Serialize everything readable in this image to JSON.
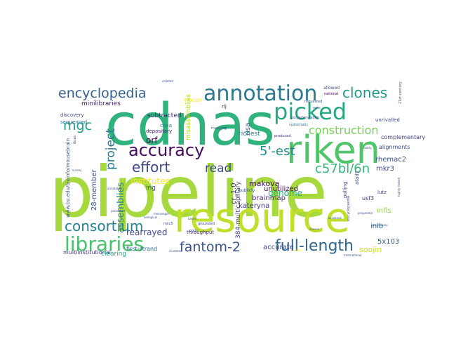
{
  "words": [
    {
      "text": "pipeline",
      "color": "#a5d93e"
    },
    {
      "text": "cdnas",
      "color": "#2fb27c"
    },
    {
      "text": "resource",
      "color": "#bfe02a"
    },
    {
      "text": "riken",
      "color": "#52c469"
    },
    {
      "text": "picked",
      "color": "#24aa83"
    },
    {
      "text": "annotation",
      "color": "#2b798e"
    },
    {
      "text": "accuracy",
      "color": "#450d5d"
    },
    {
      "text": "libraries",
      "color": "#48c16e"
    },
    {
      "text": "encyclopedia",
      "color": "#32628d"
    },
    {
      "text": "clones",
      "color": "#1f9a8a"
    },
    {
      "text": "full-length",
      "color": "#31678e"
    },
    {
      "text": "fantom-2",
      "color": "#3a528b"
    },
    {
      "text": "consortium",
      "color": "#26828e"
    },
    {
      "text": "construction",
      "color": "#75d054"
    },
    {
      "text": "effort",
      "color": "#3e4a89"
    },
    {
      "text": "c57bl/6n",
      "color": "#35b779"
    },
    {
      "text": "mgc",
      "color": "#1f9e89"
    },
    {
      "text": "project",
      "color": "#2a788e"
    },
    {
      "text": "5'-est",
      "color": "#20928c"
    },
    {
      "text": "read",
      "color": "#3b518b"
    },
    {
      "text": "genome",
      "color": "#25ac82"
    },
    {
      "text": "institutes",
      "color": "#fde725"
    },
    {
      "text": "assemblies",
      "color": "#26818e"
    },
    {
      "text": "rearrayed",
      "color": "#3e4989"
    },
    {
      "text": "soojin",
      "color": "#cae11f"
    },
    {
      "text": "kateryna",
      "color": "#433e85"
    },
    {
      "text": "makova",
      "color": "#471365"
    },
    {
      "text": "brainmap",
      "color": "#482777"
    },
    {
      "text": "orf",
      "color": "#440154"
    },
    {
      "text": "mkr3",
      "color": "#3f4889"
    },
    {
      "text": "cr_1.0",
      "color": "#46317e"
    },
    {
      "text": "infls",
      "color": "#93d741"
    },
    {
      "text": "rhemac2",
      "color": "#3b528b"
    },
    {
      "text": "inib",
      "color": "#2c728e"
    },
    {
      "text": "5x103",
      "color": "#355f8d"
    },
    {
      "text": "accurate",
      "color": "#3e4989"
    },
    {
      "text": "unutilized",
      "color": "#440154"
    },
    {
      "text": "384-multicapillary",
      "color": "#404688"
    },
    {
      "text": "28-member",
      "color": "#3b528b"
    },
    {
      "text": "minilibraries",
      "color": "#482475"
    },
    {
      "text": "subtracted",
      "color": "#482878"
    },
    {
      "text": "risa",
      "color": "#3b528b"
    },
    {
      "text": "richest",
      "color": "#26828e"
    },
    {
      "text": "first-strand",
      "color": "#31688e"
    },
    {
      "text": "multiinstitutional",
      "color": "#443983"
    },
    {
      "text": "alignments",
      "color": "#3e4a89"
    },
    {
      "text": "complementary",
      "color": "#424086"
    },
    {
      "text": "ing",
      "color": "#3f4788"
    },
    {
      "text": "clearing",
      "color": "#22a884"
    },
    {
      "text": "cdna",
      "color": "#2a788e"
    },
    {
      "text": "depository",
      "color": "#482173"
    },
    {
      "text": "macan",
      "color": "#fde725"
    },
    {
      "text": "misassemblies",
      "color": "#b5de2b"
    },
    {
      "text": "throughput",
      "color": "#472c7a"
    },
    {
      "text": "usf3",
      "color": "#46337f"
    },
    {
      "text": "atad1",
      "color": "#3e4a89"
    },
    {
      "text": "lutz",
      "color": "#404588"
    },
    {
      "text": "discovery",
      "color": "#404588"
    },
    {
      "text": "sequenced",
      "color": "#2d708e"
    },
    {
      "text": "polling",
      "color": "#46327e"
    },
    {
      "text": "unrivalled",
      "color": "#3e4989"
    },
    {
      "text": "national",
      "color": "#440154"
    },
    {
      "text": "allowed",
      "color": "#3f4889"
    },
    {
      "text": "produced",
      "color": "#46307e"
    },
    {
      "text": "publicly",
      "color": "#3b528b"
    },
    {
      "text": "requested",
      "color": "#3b528b"
    },
    {
      "text": "systematic",
      "color": "#2c718e"
    },
    {
      "text": "polyadenylation",
      "color": "#3e4989"
    },
    {
      "text": "mapping",
      "color": "#3b528b"
    },
    {
      "text": "rlj",
      "color": "#440154"
    },
    {
      "text": "collated",
      "color": "#3b528b"
    },
    {
      "text": "mkc5",
      "color": "#3b528b"
    },
    {
      "text": "pogo",
      "color": "#3b528b"
    },
    {
      "text": "grounded",
      "color": "#3e4989"
    },
    {
      "text": "21st-century",
      "color": "#3b528b"
    },
    {
      "text": "www.bu.edu/bioinfo/mousebrain",
      "color": "#3b528b"
    },
    {
      "text": "international",
      "color": "#3b528b"
    },
    {
      "text": "preparator",
      "color": "#3e4989"
    },
    {
      "text": "encyclopaedia",
      "color": "#3b528b"
    },
    {
      "text": "accessed",
      "color": "#3b528b"
    },
    {
      "text": "preliminary",
      "color": "#3b528b"
    },
    {
      "text": "chosen",
      "color": "#3b528b"
    },
    {
      "text": "messenger",
      "color": "#3b528b"
    },
    {
      "text": "procedure",
      "color": "#3b528b"
    },
    {
      "text": "based",
      "color": "#3b528b"
    },
    {
      "text": "texas",
      "color": "#3b528b"
    },
    {
      "text": "clustered",
      "color": "#3b528b"
    },
    {
      "text": "dnas",
      "color": "#3b528b"
    },
    {
      "text": "survey",
      "color": "#3b528b"
    },
    {
      "text": "biological",
      "color": "#3b528b"
    },
    {
      "text": "annotated",
      "color": "#3b528b"
    },
    {
      "text": "nearly",
      "color": "#3b528b"
    },
    {
      "text": "highly-ranked",
      "color": "#3b528b"
    },
    {
      "text": "sultin",
      "color": "#fde725"
    }
  ]
}
